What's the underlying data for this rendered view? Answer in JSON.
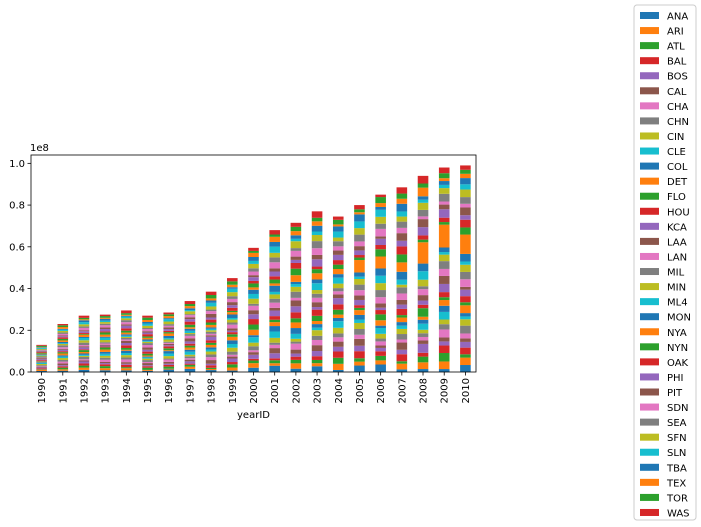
{
  "chart_data": {
    "type": "bar",
    "stacked": true,
    "xlabel": "yearID",
    "ylabel": "",
    "offset_label": "1e8",
    "ylim": [
      0,
      1.04
    ],
    "yticks": [
      0.0,
      0.2,
      0.4,
      0.6,
      0.8,
      1.0
    ],
    "ytick_labels": [
      "0.0",
      "0.2",
      "0.4",
      "0.6",
      "0.8",
      "1.0"
    ],
    "grid": false,
    "legend_position": "right, outside plot",
    "categories": [
      "1990",
      "1991",
      "1992",
      "1993",
      "1994",
      "1995",
      "1996",
      "1997",
      "1998",
      "1999",
      "2000",
      "2001",
      "2002",
      "2003",
      "2004",
      "2005",
      "2006",
      "2007",
      "2008",
      "2009",
      "2010"
    ],
    "totals": [
      0.13,
      0.23,
      0.27,
      0.275,
      0.295,
      0.27,
      0.285,
      0.34,
      0.385,
      0.45,
      0.595,
      0.68,
      0.715,
      0.77,
      0.745,
      0.8,
      0.85,
      0.885,
      0.94,
      0.98,
      0.99
    ],
    "series_names": [
      "ANA",
      "ARI",
      "ATL",
      "BAL",
      "BOS",
      "CAL",
      "CHA",
      "CHN",
      "CIN",
      "CLE",
      "COL",
      "DET",
      "FLO",
      "HOU",
      "KCA",
      "LAA",
      "LAN",
      "MIL",
      "MIN",
      "ML4",
      "MON",
      "NYA",
      "NYN",
      "OAK",
      "PHI",
      "PIT",
      "SDN",
      "SEA",
      "SFN",
      "SLN",
      "TBA",
      "TEX",
      "TOR",
      "WAS"
    ],
    "series_colors": [
      "#1f77b4",
      "#ff7f0e",
      "#2ca02c",
      "#d62728",
      "#9467bd",
      "#8c564b",
      "#e377c2",
      "#7f7f7f",
      "#bcbd22",
      "#17becf",
      "#1f77b4",
      "#ff7f0e",
      "#2ca02c",
      "#d62728",
      "#9467bd",
      "#8c564b",
      "#e377c2",
      "#7f7f7f",
      "#bcbd22",
      "#17becf",
      "#1f77b4",
      "#ff7f0e",
      "#2ca02c",
      "#d62728",
      "#9467bd",
      "#8c564b",
      "#e377c2",
      "#7f7f7f",
      "#bcbd22",
      "#17becf",
      "#1f77b4",
      "#ff7f0e",
      "#2ca02c",
      "#d62728"
    ]
  }
}
